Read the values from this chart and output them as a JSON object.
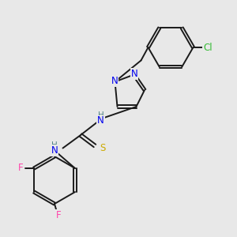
{
  "background_color": "#e8e8e8",
  "bond_color": "#1a1a1a",
  "atom_colors": {
    "N": "#0000ee",
    "S": "#ccaa00",
    "F": "#ff44aa",
    "Cl": "#33bb33",
    "H": "#558888",
    "C": "#1a1a1a"
  },
  "fig_size": [
    3.0,
    3.0
  ],
  "dpi": 100,
  "lw": 1.4,
  "fs": 8.5
}
